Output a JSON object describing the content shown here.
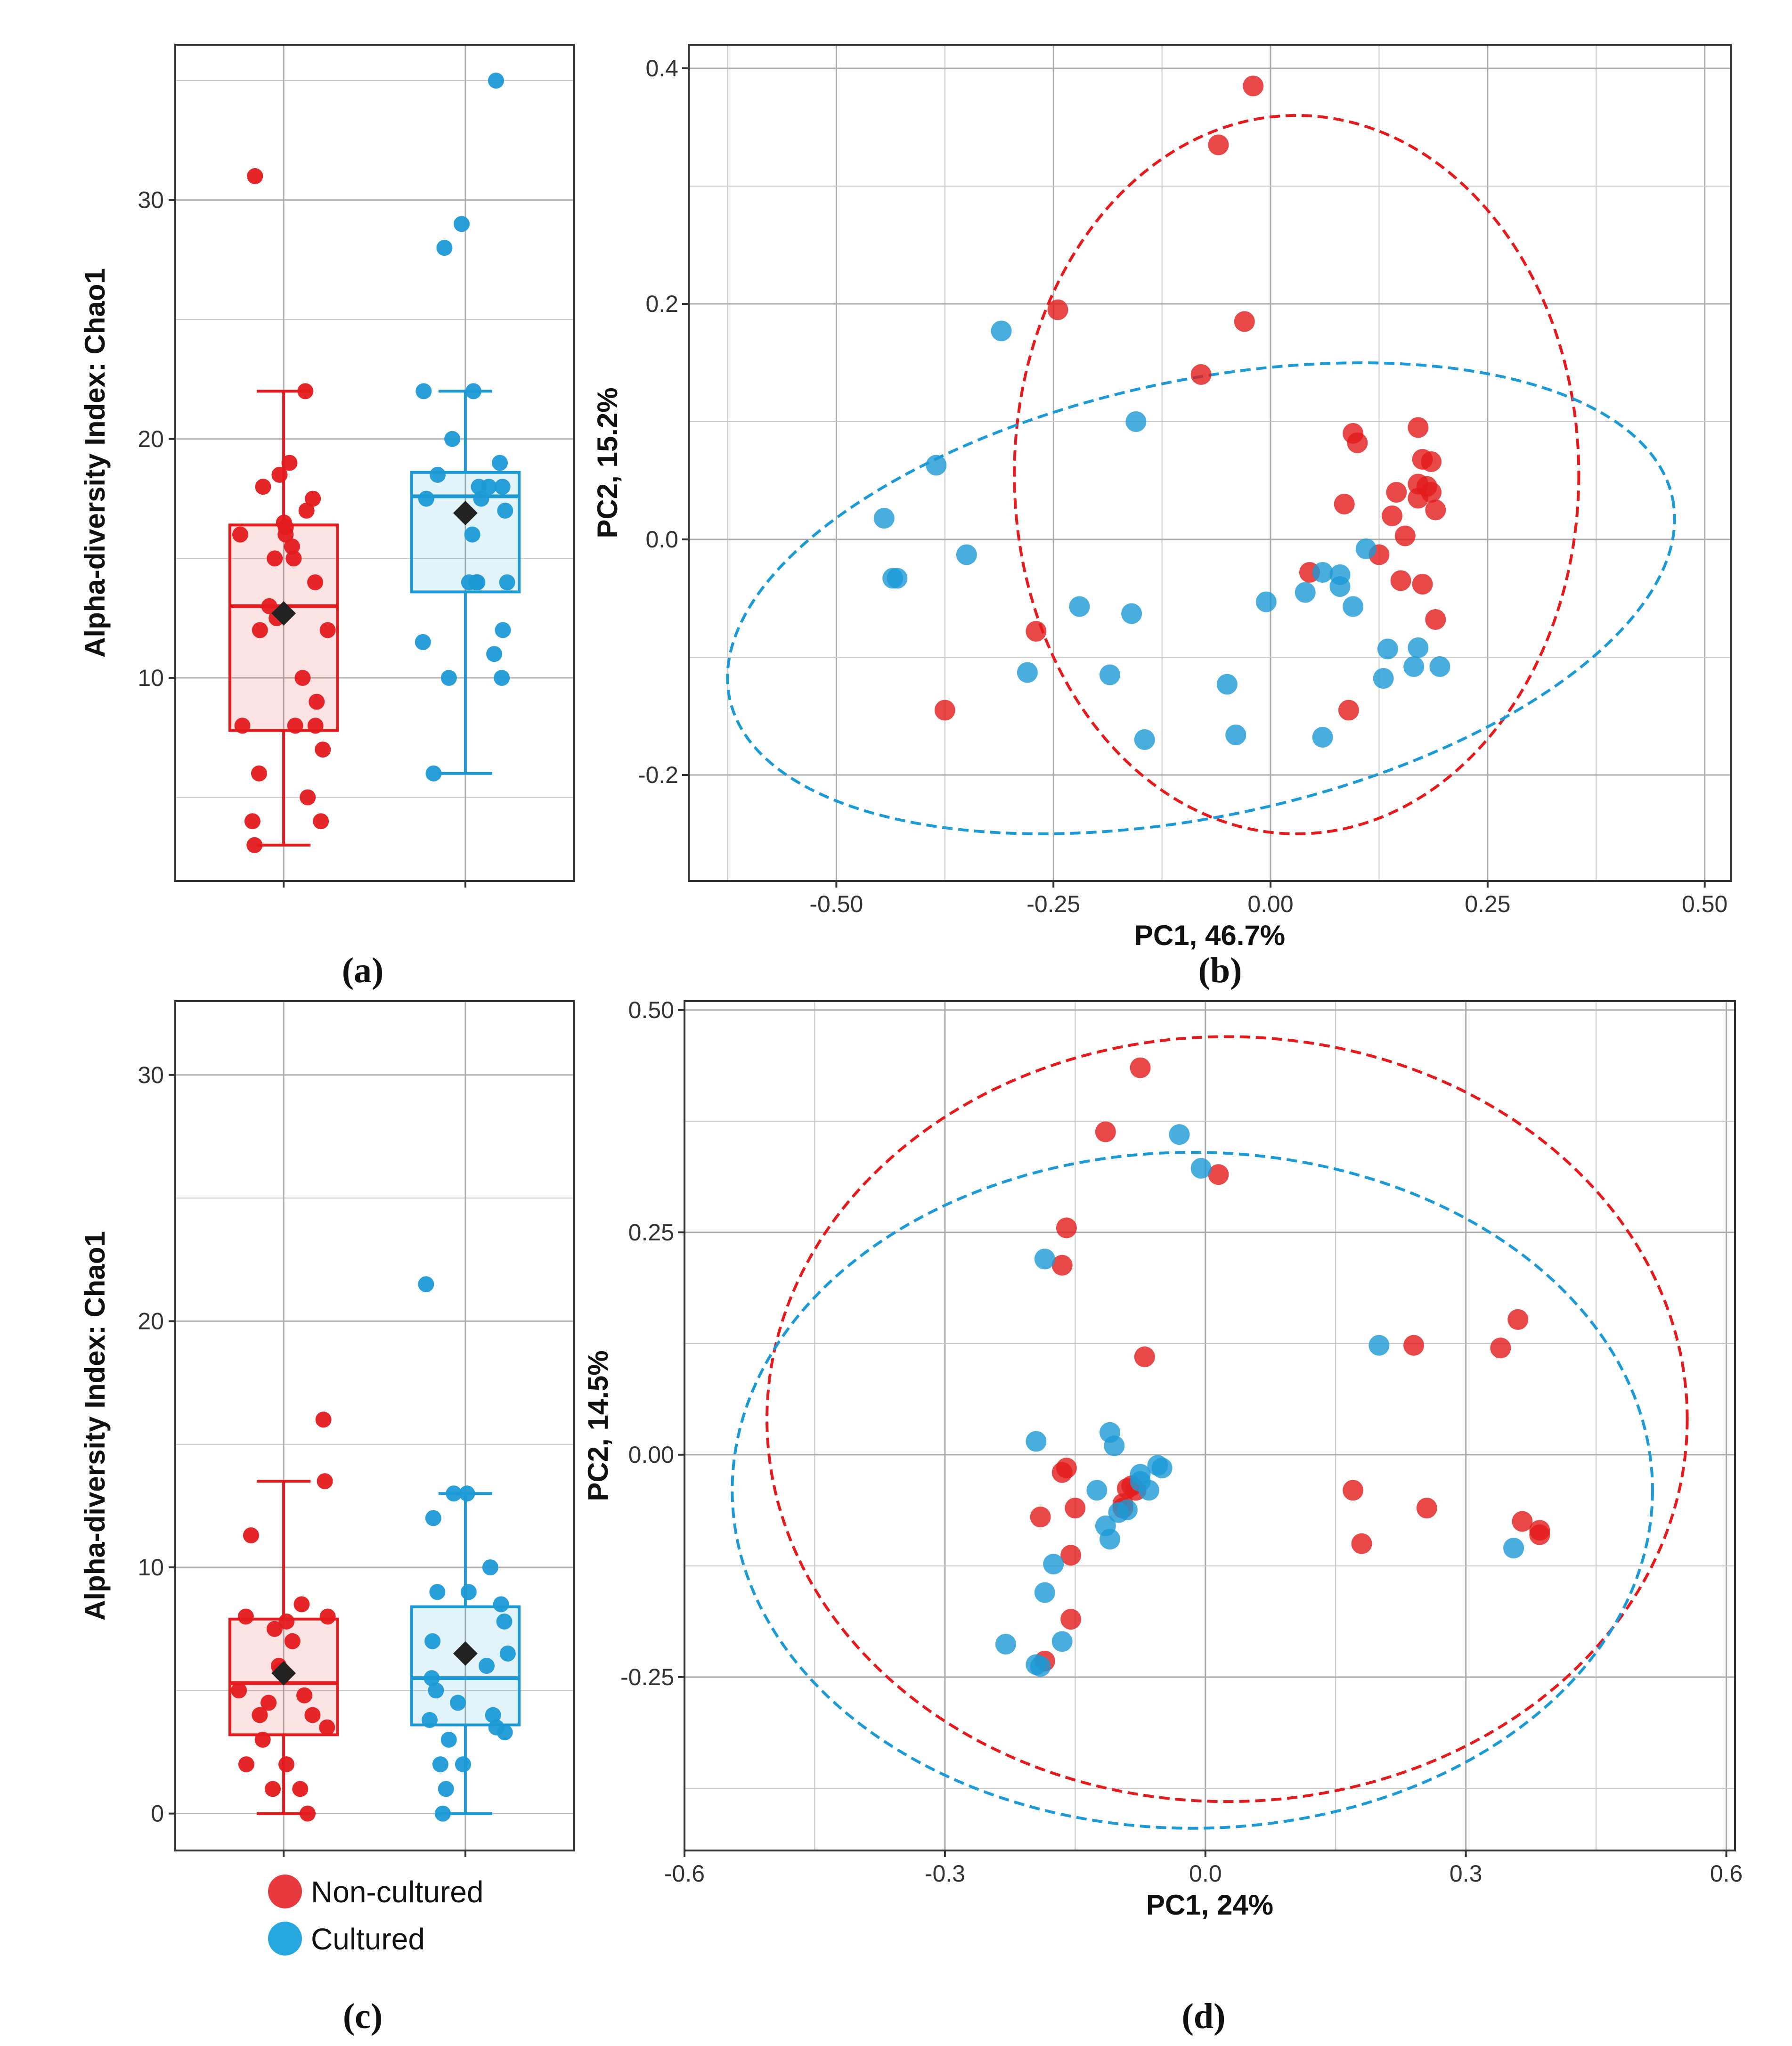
{
  "colors": {
    "non_cultured": "#e41a1c",
    "cultured": "#1c9ad6",
    "mean_marker": "#222222",
    "grid": "#b8b8b8"
  },
  "legend": {
    "items": [
      {
        "label": "Non-cultured",
        "color": "#e8393e"
      },
      {
        "label": "Cultured",
        "color": "#27a8e0"
      }
    ]
  },
  "chart_data": [
    {
      "id": "a",
      "panel_label": "(a)",
      "type": "box",
      "ylabel": "Alpha-diversity Index: Chao1",
      "xlabel": "",
      "ylim": [
        1.5,
        36.5
      ],
      "yticks": [
        10,
        20,
        30
      ],
      "groups": [
        {
          "name": "Non-cultured",
          "box": {
            "min": 3,
            "q1": 7.8,
            "median": 13,
            "q3": 16.4,
            "max": 22,
            "mean": 12.7
          },
          "points": [
            31,
            22,
            19,
            18.5,
            18,
            17.5,
            17,
            16.5,
            16.3,
            16,
            16,
            15.5,
            15,
            15,
            14,
            13,
            12.5,
            12,
            12,
            10,
            9,
            8,
            8,
            8,
            7,
            6,
            5,
            4,
            4,
            3
          ]
        },
        {
          "name": "Cultured",
          "box": {
            "min": 6,
            "q1": 13.6,
            "median": 17.6,
            "q3": 18.6,
            "max": 22,
            "mean": 16.9
          },
          "points": [
            35,
            29,
            28,
            22,
            22,
            20,
            19,
            18.5,
            18,
            18,
            18,
            17.5,
            17.5,
            17,
            16,
            14,
            14,
            14,
            14,
            12,
            11.5,
            11,
            10,
            10,
            6
          ]
        }
      ]
    },
    {
      "id": "b",
      "panel_label": "(b)",
      "type": "scatter",
      "xlabel": "PC1, 46.7%",
      "ylabel": "PC2, 15.2%",
      "xlim": [
        -0.67,
        0.53
      ],
      "ylim": [
        -0.29,
        0.42
      ],
      "xticks": [
        -0.5,
        -0.25,
        0,
        0.25,
        0.5
      ],
      "xtick_labels": [
        "-0.50",
        "-0.25",
        "0.00",
        "0.25",
        "0.50"
      ],
      "yticks": [
        -0.2,
        0,
        0.2,
        0.4
      ],
      "ytick_labels": [
        "-0.2",
        "0.0",
        "0.2",
        "0.4"
      ],
      "ellipses": [
        {
          "group": "Non-cultured",
          "cx": 0.03,
          "cy": 0.055,
          "rx": 0.325,
          "ry": 0.305,
          "angle": 0
        },
        {
          "group": "Cultured",
          "cx": -0.08,
          "cy": -0.05,
          "rx": 0.555,
          "ry": 0.185,
          "angle": -12
        }
      ],
      "series": [
        {
          "name": "Non-cultured",
          "points": [
            [
              -0.02,
              0.385
            ],
            [
              -0.06,
              0.335
            ],
            [
              -0.245,
              0.195
            ],
            [
              -0.03,
              0.185
            ],
            [
              -0.08,
              0.14
            ],
            [
              0.17,
              0.095
            ],
            [
              0.095,
              0.09
            ],
            [
              0.1,
              0.082
            ],
            [
              0.175,
              0.068
            ],
            [
              0.185,
              0.066
            ],
            [
              0.17,
              0.047
            ],
            [
              0.18,
              0.045
            ],
            [
              0.145,
              0.04
            ],
            [
              0.185,
              0.04
            ],
            [
              0.17,
              0.035
            ],
            [
              0.085,
              0.03
            ],
            [
              0.19,
              0.025
            ],
            [
              0.14,
              0.02
            ],
            [
              0.155,
              0.003
            ],
            [
              0.045,
              -0.028
            ],
            [
              0.125,
              -0.013
            ],
            [
              0.15,
              -0.035
            ],
            [
              0.175,
              -0.038
            ],
            [
              0.19,
              -0.068
            ],
            [
              -0.27,
              -0.078
            ],
            [
              0.09,
              -0.145
            ],
            [
              -0.375,
              -0.145
            ]
          ]
        },
        {
          "name": "Cultured",
          "points": [
            [
              -0.31,
              0.177
            ],
            [
              -0.155,
              0.1
            ],
            [
              -0.385,
              0.063
            ],
            [
              -0.445,
              0.018
            ],
            [
              -0.35,
              -0.013
            ],
            [
              -0.435,
              -0.033
            ],
            [
              -0.43,
              -0.033
            ],
            [
              0.11,
              -0.008
            ],
            [
              0.06,
              -0.028
            ],
            [
              0.08,
              -0.03
            ],
            [
              0.08,
              -0.04
            ],
            [
              0.04,
              -0.045
            ],
            [
              -0.005,
              -0.053
            ],
            [
              0.095,
              -0.057
            ],
            [
              -0.22,
              -0.057
            ],
            [
              -0.16,
              -0.063
            ],
            [
              0.135,
              -0.093
            ],
            [
              0.17,
              -0.092
            ],
            [
              -0.28,
              -0.113
            ],
            [
              0.195,
              -0.108
            ],
            [
              0.165,
              -0.108
            ],
            [
              -0.185,
              -0.115
            ],
            [
              0.13,
              -0.118
            ],
            [
              -0.05,
              -0.123
            ],
            [
              -0.145,
              -0.17
            ],
            [
              -0.04,
              -0.166
            ],
            [
              0.06,
              -0.168
            ]
          ]
        }
      ]
    },
    {
      "id": "c",
      "panel_label": "(c)",
      "type": "box",
      "ylabel": "Alpha-diversity Index: Chao1",
      "xlabel": "",
      "ylim": [
        -1.5,
        33
      ],
      "yticks": [
        0,
        10,
        20,
        30
      ],
      "groups": [
        {
          "name": "Non-cultured",
          "box": {
            "min": 0,
            "q1": 3.2,
            "median": 5.3,
            "q3": 7.9,
            "max": 13.5,
            "mean": 5.7
          },
          "points": [
            16,
            13.5,
            11.3,
            8.5,
            8,
            8,
            7.8,
            7.5,
            7,
            6,
            5.8,
            5,
            4.8,
            4.5,
            4,
            4,
            3.5,
            3,
            2,
            2,
            1,
            1,
            0
          ]
        },
        {
          "name": "Cultured",
          "box": {
            "min": 0,
            "q1": 3.6,
            "median": 5.5,
            "q3": 8.4,
            "max": 13,
            "mean": 6.5
          },
          "points": [
            21.5,
            13,
            13,
            12,
            10,
            9,
            9,
            8.5,
            7.8,
            7,
            6.5,
            6,
            5.5,
            5,
            4.5,
            4,
            3.8,
            3.5,
            3.3,
            3,
            2,
            2,
            1,
            0
          ]
        }
      ]
    },
    {
      "id": "d",
      "panel_label": "(d)",
      "type": "scatter",
      "xlabel": "PC1, 24%",
      "ylabel": "PC2, 14.5%",
      "xlim": [
        -0.6,
        0.61
      ],
      "ylim": [
        -0.445,
        0.51
      ],
      "xticks": [
        -0.6,
        -0.3,
        0,
        0.3,
        0.6
      ],
      "xtick_labels": [
        "-0.6",
        "-0.3",
        "0.0",
        "0.3",
        "0.6"
      ],
      "yticks": [
        -0.25,
        0,
        0.25,
        0.5
      ],
      "ytick_labels": [
        "-0.25",
        "0.00",
        "0.25",
        "0.50"
      ],
      "ellipses": [
        {
          "group": "Non-cultured",
          "cx": 0.025,
          "cy": 0.04,
          "rx": 0.53,
          "ry": 0.43,
          "angle": 0
        },
        {
          "group": "Cultured",
          "cx": -0.015,
          "cy": -0.04,
          "rx": 0.53,
          "ry": 0.38,
          "angle": 0
        }
      ],
      "series": [
        {
          "name": "Non-cultured",
          "points": [
            [
              -0.075,
              0.435
            ],
            [
              -0.115,
              0.363
            ],
            [
              0.015,
              0.315
            ],
            [
              -0.16,
              0.255
            ],
            [
              -0.165,
              0.213
            ],
            [
              -0.07,
              0.11
            ],
            [
              0.36,
              0.152
            ],
            [
              0.24,
              0.123
            ],
            [
              0.34,
              0.12
            ],
            [
              -0.16,
              -0.015
            ],
            [
              -0.165,
              -0.02
            ],
            [
              -0.085,
              -0.035
            ],
            [
              -0.09,
              -0.038
            ],
            [
              -0.08,
              -0.04
            ],
            [
              -0.095,
              -0.055
            ],
            [
              -0.095,
              -0.06
            ],
            [
              0.17,
              -0.04
            ],
            [
              -0.15,
              -0.06
            ],
            [
              0.255,
              -0.06
            ],
            [
              -0.19,
              -0.07
            ],
            [
              0.365,
              -0.075
            ],
            [
              0.385,
              -0.085
            ],
            [
              0.385,
              -0.09
            ],
            [
              -0.155,
              -0.113
            ],
            [
              0.18,
              -0.1
            ],
            [
              -0.155,
              -0.185
            ],
            [
              -0.185,
              -0.232
            ]
          ]
        },
        {
          "name": "Cultured",
          "points": [
            [
              -0.03,
              0.36
            ],
            [
              -0.005,
              0.322
            ],
            [
              -0.185,
              0.22
            ],
            [
              0.2,
              0.123
            ],
            [
              -0.195,
              0.015
            ],
            [
              -0.11,
              0.025
            ],
            [
              -0.105,
              0.01
            ],
            [
              -0.055,
              -0.012
            ],
            [
              -0.05,
              -0.015
            ],
            [
              -0.075,
              -0.022
            ],
            [
              -0.075,
              -0.03
            ],
            [
              -0.125,
              -0.04
            ],
            [
              -0.065,
              -0.04
            ],
            [
              -0.09,
              -0.062
            ],
            [
              -0.1,
              -0.065
            ],
            [
              -0.115,
              -0.08
            ],
            [
              -0.11,
              -0.095
            ],
            [
              0.355,
              -0.105
            ],
            [
              -0.175,
              -0.123
            ],
            [
              -0.185,
              -0.155
            ],
            [
              -0.165,
              -0.21
            ],
            [
              -0.23,
              -0.213
            ],
            [
              -0.195,
              -0.236
            ],
            [
              -0.19,
              -0.238
            ]
          ]
        }
      ]
    }
  ]
}
